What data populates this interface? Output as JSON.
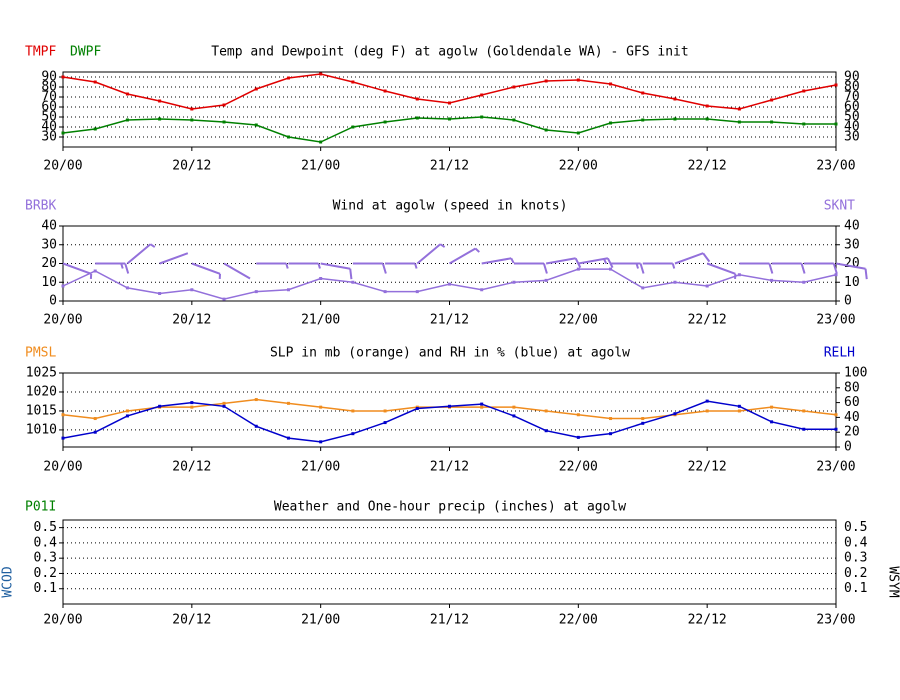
{
  "chart_data": [
    {
      "type": "line",
      "title": "Temp and Dewpoint (deg F) at agolw (Goldendale WA) - GFS init",
      "x": [
        0,
        3,
        6,
        9,
        12,
        15,
        18,
        21,
        24,
        27,
        30,
        33,
        36,
        39,
        42,
        45,
        48,
        51,
        54,
        57,
        60,
        63,
        66,
        69,
        72
      ],
      "xlim": [
        0,
        72
      ],
      "xticks": [
        {
          "value": 0,
          "label": "20/00"
        },
        {
          "value": 12,
          "label": "20/12"
        },
        {
          "value": 24,
          "label": "21/00"
        },
        {
          "value": 36,
          "label": "21/12"
        },
        {
          "value": 48,
          "label": "22/00"
        },
        {
          "value": 60,
          "label": "22/12"
        },
        {
          "value": 72,
          "label": "23/00"
        }
      ],
      "ylim": [
        20,
        95
      ],
      "yticks": [
        30,
        40,
        50,
        60,
        70,
        80,
        90
      ],
      "grid": true,
      "series": [
        {
          "name": "TMPF",
          "color": "#e00000",
          "axis": "y",
          "values": [
            90,
            85,
            73,
            66,
            58,
            62,
            78,
            89,
            93,
            85,
            76,
            68,
            64,
            72,
            80,
            86,
            87,
            83,
            74,
            68,
            61,
            58,
            67,
            76,
            82
          ]
        },
        {
          "name": "DWPF",
          "color": "#008000",
          "axis": "y",
          "values": [
            34,
            38,
            47,
            48,
            47,
            45,
            42,
            30,
            25,
            40,
            45,
            49,
            48,
            50,
            47,
            37,
            34,
            44,
            47,
            48,
            48,
            45,
            45,
            43,
            43
          ]
        }
      ]
    },
    {
      "type": "line",
      "title": "Wind at  agolw (speed in knots)",
      "x": [
        0,
        3,
        6,
        9,
        12,
        15,
        18,
        21,
        24,
        27,
        30,
        33,
        36,
        39,
        42,
        45,
        48,
        51,
        54,
        57,
        60,
        63,
        66,
        69,
        72
      ],
      "xlim": [
        0,
        72
      ],
      "xticks": [
        {
          "value": 0,
          "label": "20/00"
        },
        {
          "value": 12,
          "label": "20/12"
        },
        {
          "value": 24,
          "label": "21/00"
        },
        {
          "value": 36,
          "label": "21/12"
        },
        {
          "value": 48,
          "label": "22/00"
        },
        {
          "value": 60,
          "label": "22/12"
        },
        {
          "value": 72,
          "label": "23/00"
        }
      ],
      "ylim": [
        0,
        40
      ],
      "yticks": [
        0,
        10,
        20,
        30,
        40
      ],
      "y2lim": [
        0,
        40
      ],
      "y2ticks": [
        0,
        10,
        20,
        30,
        40
      ],
      "grid": true,
      "series": [
        {
          "name": "BRBK",
          "color": "#9370db",
          "axis": "y",
          "type": "barb",
          "values": [
            250,
            270,
            310,
            290,
            250,
            240,
            270,
            270,
            260,
            270,
            270,
            310,
            300,
            280,
            270,
            280,
            280,
            270,
            270,
            290,
            250,
            270,
            270,
            270,
            260
          ]
        },
        {
          "name": "SKNT",
          "color": "#9370db",
          "axis": "y2",
          "values": [
            8,
            16,
            7,
            4,
            6,
            1,
            5,
            6,
            12,
            10,
            5,
            5,
            9,
            6,
            10,
            11,
            17,
            17,
            7,
            10,
            8,
            14,
            11,
            10,
            14
          ]
        }
      ]
    },
    {
      "type": "line",
      "title": "SLP in mb (orange) and RH in % (blue) at  agolw",
      "x": [
        0,
        3,
        6,
        9,
        12,
        15,
        18,
        21,
        24,
        27,
        30,
        33,
        36,
        39,
        42,
        45,
        48,
        51,
        54,
        57,
        60,
        63,
        66,
        69,
        72
      ],
      "xlim": [
        0,
        72
      ],
      "xticks": [
        {
          "value": 0,
          "label": "20/00"
        },
        {
          "value": 12,
          "label": "20/12"
        },
        {
          "value": 24,
          "label": "21/00"
        },
        {
          "value": 36,
          "label": "21/12"
        },
        {
          "value": 48,
          "label": "22/00"
        },
        {
          "value": 60,
          "label": "22/12"
        },
        {
          "value": 72,
          "label": "23/00"
        }
      ],
      "ylim": [
        1005.5,
        1025
      ],
      "yticks": [
        1010,
        1015,
        1020,
        1025
      ],
      "y2lim": [
        0,
        100
      ],
      "y2ticks": [
        0,
        20,
        40,
        60,
        80,
        100
      ],
      "grid": true,
      "series": [
        {
          "name": "PMSL",
          "color": "#f08c1e",
          "axis": "y",
          "values": [
            1014,
            1013,
            1015,
            1016,
            1016,
            1017,
            1018,
            1017,
            1016,
            1015,
            1015,
            1016,
            1016,
            1016,
            1016,
            1015,
            1014,
            1013,
            1013,
            1014,
            1015,
            1015,
            1016,
            1015,
            1014
          ]
        },
        {
          "name": "RELH",
          "color": "#0000cc",
          "axis": "y2",
          "values": [
            12,
            20,
            42,
            55,
            60,
            55,
            28,
            12,
            7,
            18,
            33,
            52,
            55,
            58,
            42,
            22,
            13,
            18,
            32,
            45,
            62,
            55,
            34,
            24,
            24
          ]
        }
      ]
    },
    {
      "type": "line",
      "title": "Weather and One-hour precip (inches) at  agolw",
      "x": [
        0,
        3,
        6,
        9,
        12,
        15,
        18,
        21,
        24,
        27,
        30,
        33,
        36,
        39,
        42,
        45,
        48,
        51,
        54,
        57,
        60,
        63,
        66,
        69,
        72
      ],
      "xlim": [
        0,
        72
      ],
      "xticks": [
        {
          "value": 0,
          "label": "20/00"
        },
        {
          "value": 12,
          "label": "20/12"
        },
        {
          "value": 24,
          "label": "21/00"
        },
        {
          "value": 36,
          "label": "21/12"
        },
        {
          "value": 48,
          "label": "22/00"
        },
        {
          "value": 60,
          "label": "22/12"
        },
        {
          "value": 72,
          "label": "23/00"
        }
      ],
      "ylim": [
        0,
        0.55
      ],
      "yticks": [
        0.1,
        0.2,
        0.3,
        0.4,
        0.5
      ],
      "grid": true,
      "ylabel": "WCOD",
      "y2label": "WSYM",
      "ylabel_color": "#1f5fa0",
      "series": [
        {
          "name": "P01I",
          "color": "#008000",
          "axis": "y",
          "values": [
            null,
            null,
            null,
            null,
            null,
            null,
            null,
            null,
            null,
            null,
            null,
            null,
            null,
            null,
            null,
            null,
            null,
            null,
            null,
            null,
            null,
            null,
            null,
            null,
            null
          ]
        }
      ]
    }
  ]
}
